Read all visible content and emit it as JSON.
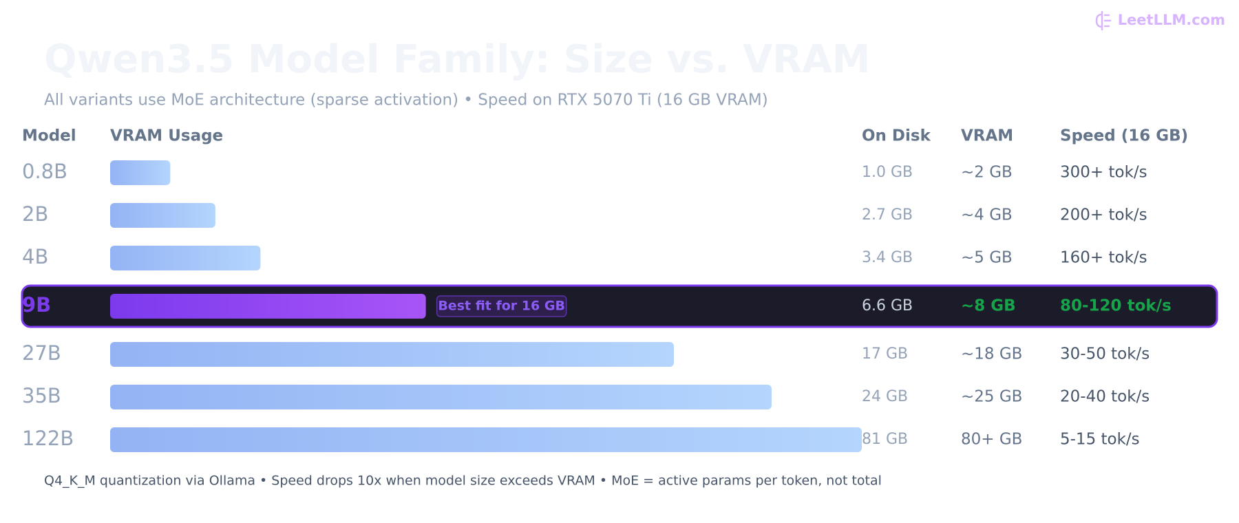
{
  "logo": "LeetLLM.com",
  "title": "Qwen3.5 Model Family: Size vs. VRAM",
  "subtitle": "All variants use MoE architecture (sparse activation) • Speed on RTX 5070 Ti (16 GB VRAM)",
  "columns": [
    "Model",
    "VRAM Usage",
    "On Disk",
    "VRAM",
    "Speed (16 GB)"
  ],
  "rows": [
    {
      "model": "0.8B",
      "usage": 8,
      "disk": "1.0 GB",
      "vram": "~2 GB",
      "speed": "300+ tok/s"
    },
    {
      "model": "2B",
      "usage": 14,
      "disk": "2.7 GB",
      "vram": "~4 GB",
      "speed": "200+ tok/s"
    },
    {
      "model": "4B",
      "usage": 20,
      "disk": "3.4 GB",
      "vram": "~5 GB",
      "speed": "160+ tok/s"
    },
    {
      "model": "9B",
      "usage": 42,
      "disk": "6.6 GB",
      "vram": "~8 GB",
      "speed": "80-120 tok/s",
      "highlight": true,
      "badge": "Best fit for 16 GB"
    },
    {
      "model": "27B",
      "usage": 75,
      "disk": "17 GB",
      "vram": "~18 GB",
      "speed": "30-50 tok/s"
    },
    {
      "model": "35B",
      "usage": 88,
      "disk": "24 GB",
      "vram": "~25 GB",
      "speed": "20-40 tok/s"
    },
    {
      "model": "122B",
      "usage": 100,
      "disk": "81 GB",
      "vram": "80+ GB",
      "speed": "5-15 tok/s"
    }
  ],
  "footnote": "Q4_K_M quantization via Ollama • Speed drops 10x when model size exceeds VRAM • MoE = active params per token, not total"
}
